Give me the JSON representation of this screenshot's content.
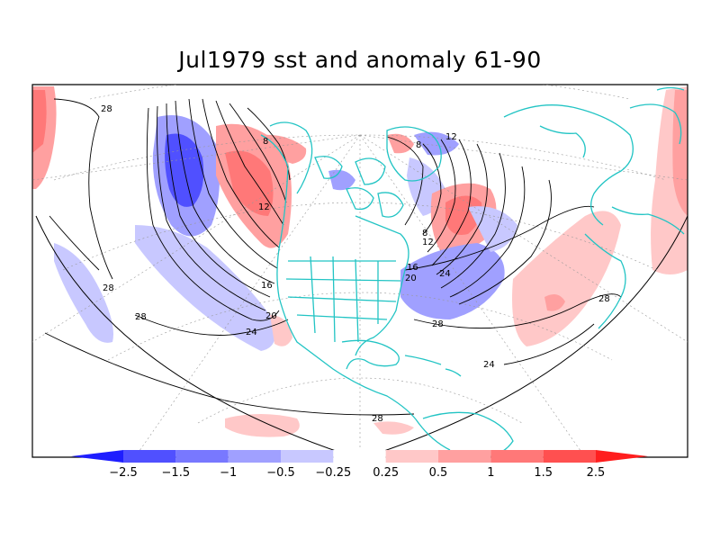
{
  "title": "Jul1979 sst and anomaly 61-90",
  "colors": {
    "coast": "#22c4c4",
    "contour": "#000000",
    "grid": "#999999"
  },
  "colorbar": {
    "labels": [
      "-2.5",
      "-1.5",
      "-1",
      "-0.5",
      "-0.25",
      "0.25",
      "0.5",
      "1",
      "1.5",
      "2.5"
    ],
    "colors": [
      "#1e1eff",
      "#5050ff",
      "#7878ff",
      "#a0a0ff",
      "#c8c8ff",
      "#ffffff",
      "#ffc8c8",
      "#ffa0a0",
      "#ff7878",
      "#ff5050",
      "#ff1e1e"
    ]
  },
  "contour_labels": [
    "28",
    "28",
    "28",
    "28",
    "24",
    "20",
    "16",
    "12",
    "8",
    "12",
    "8",
    "24",
    "20",
    "16",
    "12",
    "8",
    "28",
    "28",
    "24"
  ]
}
